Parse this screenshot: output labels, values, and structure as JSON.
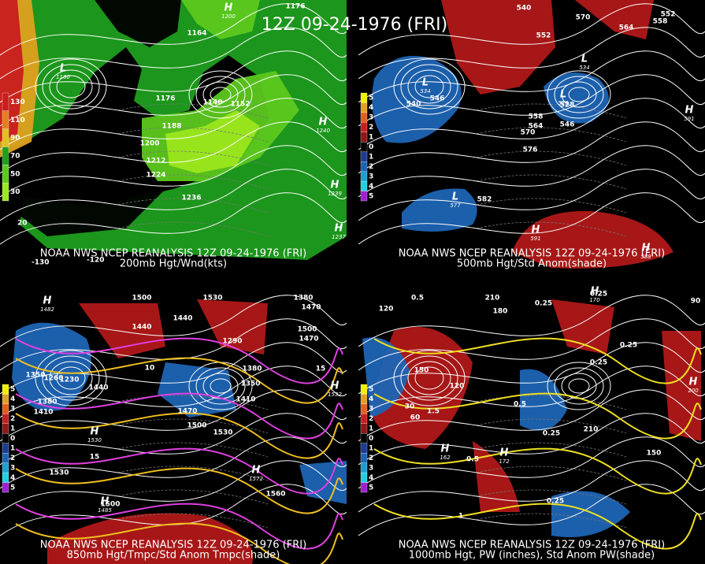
{
  "title": "12Z 09-24-1976 (FRI)",
  "panels": [
    {
      "source": "NOAA NWS NCEP REANALYSIS 12Z 09-24-1976 (FRI)",
      "subtitle": "200mb Hgt/Wnd(kts)",
      "colorbar": [
        "130",
        "110",
        "90",
        "70",
        "50",
        "30"
      ],
      "axis_labels": [
        "20",
        "-130",
        "-120"
      ],
      "contour_labels": [
        "1176",
        "1164",
        "1176",
        "1140",
        "1152",
        "1188",
        "1200",
        "1212",
        "1224",
        "1236"
      ],
      "centers": [
        {
          "symbol": "L",
          "value": "1160"
        },
        {
          "symbol": "H",
          "value": "1200"
        },
        {
          "symbol": "H",
          "value": "1240"
        },
        {
          "symbol": "H",
          "value": "1239"
        },
        {
          "symbol": "H",
          "value": "1237"
        }
      ]
    },
    {
      "source": "NOAA NWS NCEP REANALYSIS 12Z 09-24-1976 (FRI)",
      "subtitle": "500mb Hgt/Std Anom(shade)",
      "colorbar": [
        "5",
        "4",
        "3",
        "2",
        "1",
        "0",
        "1",
        "2",
        "3",
        "4",
        "5"
      ],
      "contour_labels": [
        "540",
        "570",
        "552",
        "564",
        "558",
        "552",
        "546",
        "540",
        "528",
        "546",
        "558",
        "564",
        "570",
        "576",
        "582"
      ],
      "centers": [
        {
          "symbol": "L",
          "value": "534"
        },
        {
          "symbol": "L",
          "value": "534"
        },
        {
          "symbol": "L",
          "value": "528"
        },
        {
          "symbol": "L",
          "value": "577"
        },
        {
          "symbol": "H",
          "value": "591"
        },
        {
          "symbol": "H",
          "value": "591"
        },
        {
          "symbol": "H",
          "value": "588"
        }
      ]
    },
    {
      "source": "NOAA NWS NCEP REANALYSIS 12Z 09-24-1976 (FRI)",
      "subtitle": "850mb Hgt/Tmpc/Std Anom Tmpc(shade)",
      "colorbar": [
        "5",
        "4",
        "3",
        "2",
        "1",
        "0",
        "1",
        "2",
        "3",
        "4",
        "5"
      ],
      "contour_labels": [
        "1500",
        "1530",
        "1380",
        "1470",
        "1440",
        "1440",
        "1350",
        "1260",
        "1230",
        "1440",
        "1380",
        "1410",
        "1380",
        "1350",
        "1410",
        "1470",
        "1500",
        "1530",
        "1500",
        "1470",
        "1290",
        "1530",
        "1500",
        "1560",
        "15",
        "15",
        "10"
      ],
      "centers": [
        {
          "symbol": "H",
          "value": "1482"
        },
        {
          "symbol": "H",
          "value": "1532"
        },
        {
          "symbol": "H",
          "value": "1530"
        },
        {
          "symbol": "H",
          "value": "1572"
        },
        {
          "symbol": "H",
          "value": "1485"
        }
      ]
    },
    {
      "source": "NOAA NWS NCEP REANALYSIS 12Z 09-24-1976 (FRI)",
      "subtitle": "1000mb Hgt, PW (inches), Std Anom PW(shade)",
      "colorbar": [
        "5",
        "4",
        "3",
        "2",
        "1",
        "0",
        "1",
        "2",
        "3",
        "4",
        "5"
      ],
      "contour_labels": [
        "0.5",
        "210",
        "0.25",
        "0.25",
        "90",
        "120",
        "180",
        "0.25",
        "150",
        "30",
        "60",
        "120",
        "1.5",
        "0.5",
        "0.25",
        "0.25",
        "150",
        "210",
        "0.5",
        "1",
        "0.25"
      ],
      "centers": [
        {
          "symbol": "H",
          "value": "172"
        },
        {
          "symbol": "H",
          "value": "162"
        },
        {
          "symbol": "H",
          "value": "170"
        },
        {
          "symbol": "H",
          "value": "200"
        }
      ]
    }
  ]
}
